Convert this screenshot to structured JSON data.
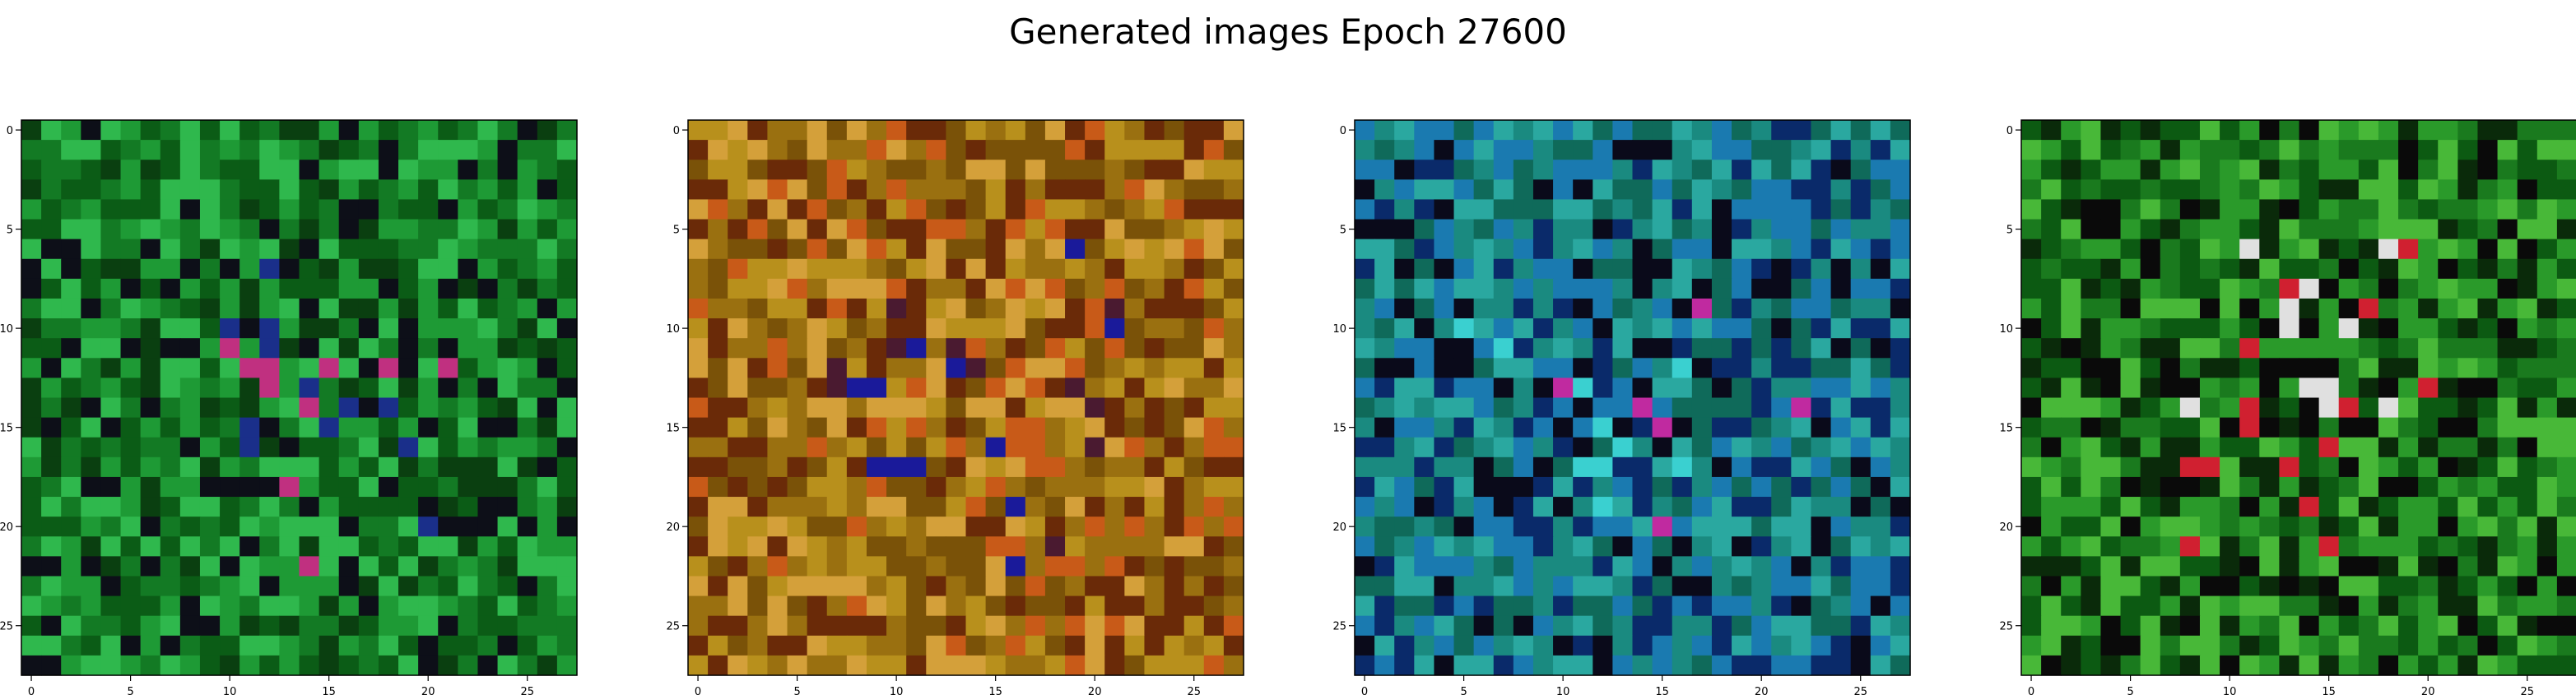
{
  "figure": {
    "title": "Generated images Epoch 27600"
  },
  "chart_data": [
    {
      "type": "heatmap",
      "title": "",
      "xlabel": "",
      "ylabel": "",
      "xlim": [
        -0.5,
        27.5
      ],
      "ylim": [
        27.5,
        -0.5
      ],
      "x_ticks": [
        "0",
        "5",
        "10",
        "15",
        "20",
        "25"
      ],
      "y_ticks": [
        "0",
        "5",
        "10",
        "15",
        "20",
        "25"
      ],
      "grid": false,
      "dominant_color": "#1b8a2e",
      "palette": [
        "#0b5c16",
        "#137a24",
        "#1e9a35",
        "#2fb84d",
        "#0a3f10",
        "#0d0f18",
        "#1a2f8a",
        "#c03080"
      ]
    },
    {
      "type": "heatmap",
      "title": "",
      "xlabel": "",
      "ylabel": "",
      "xlim": [
        -0.5,
        27.5
      ],
      "ylim": [
        27.5,
        -0.5
      ],
      "x_ticks": [
        "0",
        "5",
        "10",
        "15",
        "20",
        "25"
      ],
      "y_ticks": [
        "0",
        "5",
        "10",
        "15",
        "20",
        "25"
      ],
      "grid": false,
      "dominant_color": "#8a6a10",
      "palette": [
        "#7a5208",
        "#9a7010",
        "#b8901c",
        "#6a2a08",
        "#c85a18",
        "#d4a03a",
        "#4a1a30",
        "#1a1a9a"
      ]
    },
    {
      "type": "heatmap",
      "title": "",
      "xlabel": "",
      "ylabel": "",
      "xlim": [
        -0.5,
        27.5
      ],
      "ylim": [
        27.5,
        -0.5
      ],
      "x_ticks": [
        "0",
        "5",
        "10",
        "15",
        "20",
        "25"
      ],
      "y_ticks": [
        "0",
        "5",
        "10",
        "15",
        "20",
        "25"
      ],
      "grid": false,
      "dominant_color": "#1a8a80",
      "palette": [
        "#0f6a5a",
        "#1a8a80",
        "#2aa8a0",
        "#1a7ab0",
        "#0a2a6a",
        "#0a0a1a",
        "#3ad0d0",
        "#c02aa0"
      ]
    },
    {
      "type": "heatmap",
      "title": "",
      "xlabel": "",
      "ylabel": "",
      "xlim": [
        -0.5,
        27.5
      ],
      "ylim": [
        27.5,
        -0.5
      ],
      "x_ticks": [
        "0",
        "5",
        "10",
        "15",
        "20",
        "25"
      ],
      "y_ticks": [
        "0",
        "5",
        "10",
        "15",
        "20",
        "25"
      ],
      "grid": false,
      "dominant_color": "#1a8a20",
      "palette": [
        "#0c5a12",
        "#1a7a1e",
        "#2a9a2a",
        "#48b838",
        "#0a2a0a",
        "#0a0a0a",
        "#d02030",
        "#e0e0e0"
      ]
    }
  ]
}
